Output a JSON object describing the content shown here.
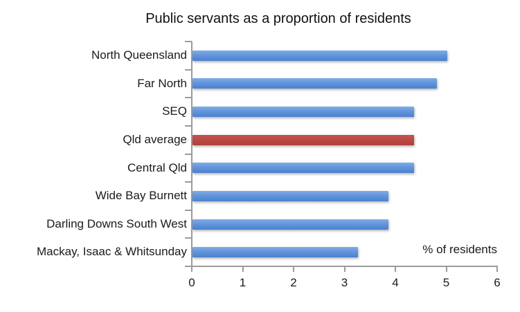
{
  "chart_data": {
    "type": "bar",
    "orientation": "horizontal",
    "title": "Public servants as a proportion of residents",
    "axis_label": "% of residents",
    "categories": [
      "North Queensland",
      "Far North",
      "SEQ",
      "Qld average",
      "Central Qld",
      "Wide Bay Burnett",
      "Darling Downs South West",
      "Mackay, Isaac & Whitsunday"
    ],
    "values": [
      5.0,
      4.8,
      4.35,
      4.35,
      4.35,
      3.85,
      3.85,
      3.25
    ],
    "bar_color_keys": [
      "blue",
      "blue",
      "blue",
      "red",
      "blue",
      "blue",
      "blue",
      "blue"
    ],
    "highlighted_category": "Qld average",
    "xlim": [
      0,
      6
    ],
    "xticks": [
      0,
      1,
      2,
      3,
      4,
      5,
      6
    ],
    "grid": false,
    "legend": "none",
    "colors": {
      "blue_top": "#82ABE7",
      "blue_mid": "#6296DC",
      "blue_bottom": "#4B80CD",
      "red_top": "#C4554F",
      "red_mid": "#BB4743",
      "red_bottom": "#AC403C",
      "axis": "#9B9B9B",
      "text": "#1A1A1A"
    }
  }
}
